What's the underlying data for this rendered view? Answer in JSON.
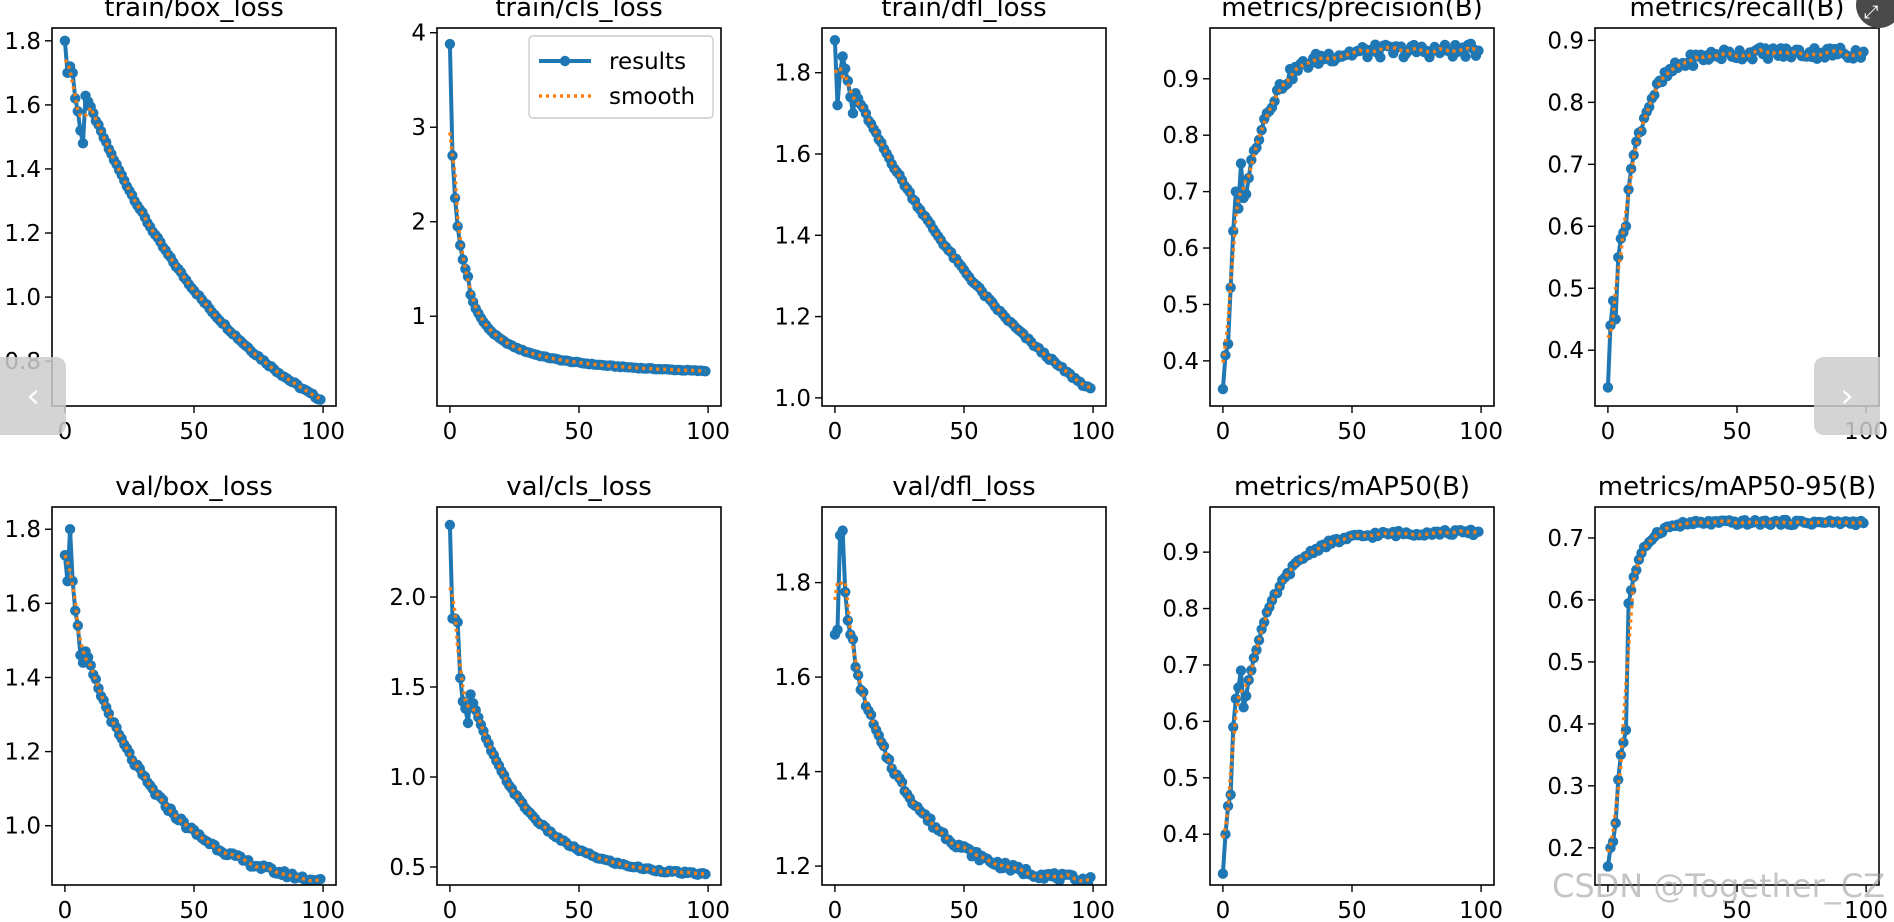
{
  "colors": {
    "results": "#1f77b4",
    "smooth": "#ff7f0e",
    "axis": "#000000",
    "background": "#ffffff"
  },
  "navigation": {
    "prev_icon": "chevron-left-icon",
    "prev_glyph": "‹",
    "next_icon": "chevron-right-icon",
    "next_glyph": "›",
    "expand_icon": "expand-icon",
    "expand_glyph": "⤢"
  },
  "watermark": "CSDN @Together_CZ",
  "legend": {
    "results": "results",
    "smooth": "smooth"
  },
  "chart_data": [
    {
      "type": "line",
      "title": "train/box_loss",
      "xlim": [
        -5,
        105
      ],
      "ylim": [
        0.66,
        1.84
      ],
      "xticks": [
        0,
        50,
        100
      ],
      "xtick_labels": [
        "0",
        "50",
        "100"
      ],
      "yticks": [
        0.8,
        1.0,
        1.2,
        1.4,
        1.6,
        1.8
      ],
      "ytick_labels": [
        "0.8",
        "1.0",
        "1.2",
        "1.4",
        "1.6",
        "1.8"
      ],
      "series": [
        {
          "name": "results",
          "curve": "exp",
          "start": 1.8,
          "end": 0.68,
          "k": 1.6,
          "noise": 0.004,
          "early": [
            1.8,
            1.7,
            1.72,
            1.7,
            1.62,
            1.58,
            1.52,
            1.48
          ]
        }
      ]
    },
    {
      "type": "line",
      "title": "train/cls_loss",
      "xlim": [
        -5,
        105
      ],
      "ylim": [
        0.05,
        4.05
      ],
      "xticks": [
        0,
        50,
        100
      ],
      "xtick_labels": [
        "0",
        "50",
        "100"
      ],
      "yticks": [
        1,
        2,
        3,
        4
      ],
      "ytick_labels": [
        "1",
        "2",
        "3",
        "4"
      ],
      "legend": true,
      "series": [
        {
          "name": "results",
          "curve": "hyp",
          "start": 3.88,
          "end": 0.42,
          "k": 0.55,
          "noise": 0.005,
          "early": [
            3.88,
            2.7,
            2.25,
            1.95,
            1.75,
            1.6,
            1.5,
            1.42
          ]
        }
      ]
    },
    {
      "type": "line",
      "title": "train/dfl_loss",
      "xlim": [
        -5,
        105
      ],
      "ylim": [
        0.98,
        1.91
      ],
      "xticks": [
        0,
        50,
        100
      ],
      "xtick_labels": [
        "0",
        "50",
        "100"
      ],
      "yticks": [
        1.0,
        1.2,
        1.4,
        1.6,
        1.8
      ],
      "ytick_labels": [
        "1.0",
        "1.2",
        "1.4",
        "1.6",
        "1.8"
      ],
      "series": [
        {
          "name": "results",
          "curve": "exp",
          "start": 1.86,
          "end": 1.02,
          "k": 1.2,
          "noise": 0.004,
          "early": [
            1.88,
            1.72,
            1.8,
            1.84,
            1.81,
            1.78,
            1.74,
            1.7
          ]
        }
      ]
    },
    {
      "type": "line",
      "title": "metrics/precision(B)",
      "xlim": [
        -5,
        105
      ],
      "ylim": [
        0.32,
        0.99
      ],
      "xticks": [
        0,
        50,
        100
      ],
      "xtick_labels": [
        "0",
        "50",
        "100"
      ],
      "yticks": [
        0.4,
        0.5,
        0.6,
        0.7,
        0.8,
        0.9
      ],
      "ytick_labels": [
        "0.4",
        "0.5",
        "0.6",
        "0.7",
        "0.8",
        "0.9"
      ],
      "series": [
        {
          "name": "results",
          "curve": "rise",
          "start": 0.35,
          "end": 0.95,
          "k": 0.1,
          "noise": 0.012,
          "early": [
            0.35,
            0.41,
            0.43,
            0.53,
            0.63,
            0.7,
            0.67,
            0.75
          ]
        }
      ]
    },
    {
      "type": "line",
      "title": "metrics/recall(B)",
      "xlim": [
        -5,
        105
      ],
      "ylim": [
        0.31,
        0.92
      ],
      "xticks": [
        0,
        50,
        100
      ],
      "xtick_labels": [
        "0",
        "50",
        "100"
      ],
      "yticks": [
        0.4,
        0.5,
        0.6,
        0.7,
        0.8,
        0.9
      ],
      "ytick_labels": [
        "0.4",
        "0.5",
        "0.6",
        "0.7",
        "0.8",
        "0.9"
      ],
      "series": [
        {
          "name": "results",
          "curve": "rise",
          "start": 0.34,
          "end": 0.88,
          "k": 0.085,
          "noise": 0.01,
          "early": [
            0.34,
            0.44,
            0.48,
            0.45,
            0.55,
            0.58,
            0.59,
            0.6
          ]
        }
      ]
    },
    {
      "type": "line",
      "title": "val/box_loss",
      "xlim": [
        -5,
        105
      ],
      "ylim": [
        0.84,
        1.86
      ],
      "xticks": [
        0,
        50,
        100
      ],
      "xtick_labels": [
        "0",
        "50",
        "100"
      ],
      "yticks": [
        1.0,
        1.2,
        1.4,
        1.6,
        1.8
      ],
      "ytick_labels": [
        "1.0",
        "1.2",
        "1.4",
        "1.6",
        "1.8"
      ],
      "series": [
        {
          "name": "results",
          "curve": "exp",
          "start": 1.66,
          "end": 0.85,
          "k": 3.2,
          "noise": 0.008,
          "early": [
            1.73,
            1.66,
            1.8,
            1.66,
            1.58,
            1.54,
            1.46,
            1.44
          ]
        }
      ]
    },
    {
      "type": "line",
      "title": "val/cls_loss",
      "xlim": [
        -5,
        105
      ],
      "ylim": [
        0.4,
        2.5
      ],
      "xticks": [
        0,
        50,
        100
      ],
      "xtick_labels": [
        "0",
        "50",
        "100"
      ],
      "yticks": [
        0.5,
        1.0,
        1.5,
        2.0
      ],
      "ytick_labels": [
        "0.5",
        "1.0",
        "1.5",
        "2.0"
      ],
      "series": [
        {
          "name": "results",
          "curve": "exp",
          "start": 1.9,
          "end": 0.46,
          "k": 4.5,
          "noise": 0.007,
          "early": [
            2.4,
            1.88,
            1.88,
            1.86,
            1.55,
            1.42,
            1.38,
            1.3
          ]
        }
      ]
    },
    {
      "type": "line",
      "title": "val/dfl_loss",
      "xlim": [
        -5,
        105
      ],
      "ylim": [
        1.16,
        1.96
      ],
      "xticks": [
        0,
        50,
        100
      ],
      "xtick_labels": [
        "0",
        "50",
        "100"
      ],
      "yticks": [
        1.2,
        1.4,
        1.6,
        1.8
      ],
      "ytick_labels": [
        "1.2",
        "1.4",
        "1.6",
        "1.8"
      ],
      "series": [
        {
          "name": "results",
          "curve": "exp",
          "start": 1.8,
          "end": 1.17,
          "k": 4.2,
          "noise": 0.008,
          "early": [
            1.69,
            1.7,
            1.9,
            1.91,
            1.78,
            1.72,
            1.69,
            1.68
          ]
        }
      ]
    },
    {
      "type": "line",
      "title": "metrics/mAP50(B)",
      "xlim": [
        -5,
        105
      ],
      "ylim": [
        0.31,
        0.98
      ],
      "xticks": [
        0,
        50,
        100
      ],
      "xtick_labels": [
        "0",
        "50",
        "100"
      ],
      "yticks": [
        0.4,
        0.5,
        0.6,
        0.7,
        0.8,
        0.9
      ],
      "ytick_labels": [
        "0.4",
        "0.5",
        "0.6",
        "0.7",
        "0.8",
        "0.9"
      ],
      "series": [
        {
          "name": "results",
          "curve": "rise",
          "start": 0.33,
          "end": 0.935,
          "k": 0.12,
          "noise": 0.005,
          "early": [
            0.33,
            0.4,
            0.45,
            0.47,
            0.59,
            0.64,
            0.66,
            0.69
          ]
        }
      ]
    },
    {
      "type": "line",
      "title": "metrics/mAP50-95(B)",
      "xlim": [
        -5,
        105
      ],
      "ylim": [
        0.14,
        0.75
      ],
      "xticks": [
        0,
        50,
        100
      ],
      "xtick_labels": [
        "0",
        "50",
        "100"
      ],
      "yticks": [
        0.2,
        0.3,
        0.4,
        0.5,
        0.6,
        0.7
      ],
      "ytick_labels": [
        "0.2",
        "0.3",
        "0.4",
        "0.5",
        "0.6",
        "0.7"
      ],
      "series": [
        {
          "name": "results",
          "curve": "rise",
          "start": 0.17,
          "end": 0.725,
          "k": 0.055,
          "noise": 0.004,
          "early": [
            0.17,
            0.2,
            0.21,
            0.24,
            0.31,
            0.35,
            0.37,
            0.39
          ]
        }
      ]
    }
  ]
}
